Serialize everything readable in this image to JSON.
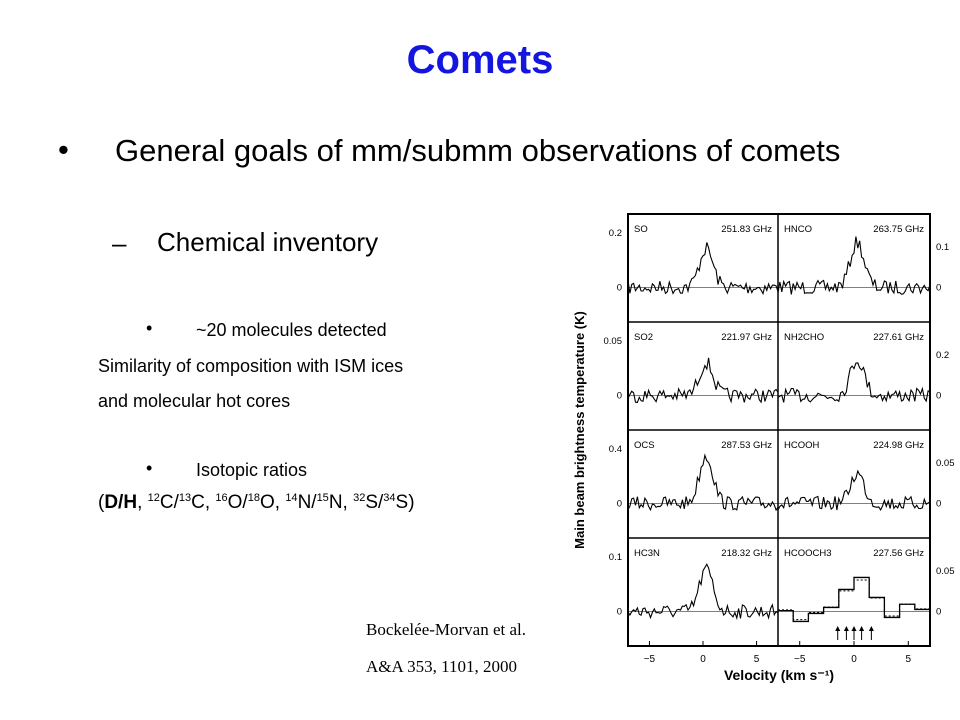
{
  "slide": {
    "title": "Comets",
    "bullet_symbol": "•",
    "goal": "General goals of mm/submm observations of comets",
    "dash_symbol": "–",
    "subgoal": "Chemical inventory",
    "molecules_bullet": "~20 molecules detected",
    "similarity_line1": "Similarity of composition with ISM ices",
    "similarity_line2": "and molecular hot cores",
    "isotopic_bullet": "Isotopic ratios",
    "isotopic_ratios_line": "(D/H, 12C/13C, 16O/18O, 14N/15N, 32S/34S)",
    "citation_authors": "Bockelée-Morvan et al.",
    "citation_journal": "A&A 353, 1101, 2000"
  },
  "colors": {
    "title": "#1515e0",
    "text": "#000000"
  },
  "chart_data": {
    "type": "line",
    "ylabel": "Main beam brightness temperature (K)",
    "xlabel": "Velocity (km s⁻¹)",
    "x_ticks": [
      "−5",
      "0",
      "5",
      "−5",
      "0",
      "5"
    ],
    "xlim": [
      -7,
      7
    ],
    "rows": [
      {
        "left": {
          "molecule": "SO",
          "freq": "251.83 GHz",
          "yticks": [
            "0.2",
            "0"
          ],
          "ylim": [
            -0.08,
            0.22
          ]
        },
        "right": {
          "molecule": "HNCO",
          "freq": "263.75 GHz",
          "yticks": [
            "0.1",
            "0"
          ],
          "ylim": [
            -0.04,
            0.12
          ]
        }
      },
      {
        "left": {
          "molecule": "SO2",
          "freq": "221.97 GHz",
          "yticks": [
            "0.05",
            "0"
          ],
          "ylim": [
            -0.03,
            0.07
          ]
        },
        "right": {
          "molecule": "NH2CHO",
          "freq": "227.61 GHz",
          "yticks": [
            "0.2",
            "0"
          ],
          "ylim": [
            -0.1,
            0.28
          ]
        }
      },
      {
        "left": {
          "molecule": "OCS",
          "freq": "287.53 GHz",
          "yticks": [
            "0.4",
            "0"
          ],
          "ylim": [
            -0.15,
            0.5
          ]
        },
        "right": {
          "molecule": "HCOOH",
          "freq": "224.98 GHz",
          "yticks": [
            "0.05",
            "0"
          ],
          "ylim": [
            -0.03,
            0.07
          ]
        }
      },
      {
        "left": {
          "molecule": "HC3N",
          "freq": "218.32 GHz",
          "yticks": [
            "0.1",
            "0"
          ],
          "ylim": [
            -0.05,
            0.14
          ]
        },
        "right": {
          "molecule": "HCOOCH3",
          "freq": "227.56 GHz",
          "yticks": [
            "0.05",
            "0"
          ],
          "ylim": [
            -0.03,
            0.07
          ]
        }
      }
    ]
  }
}
